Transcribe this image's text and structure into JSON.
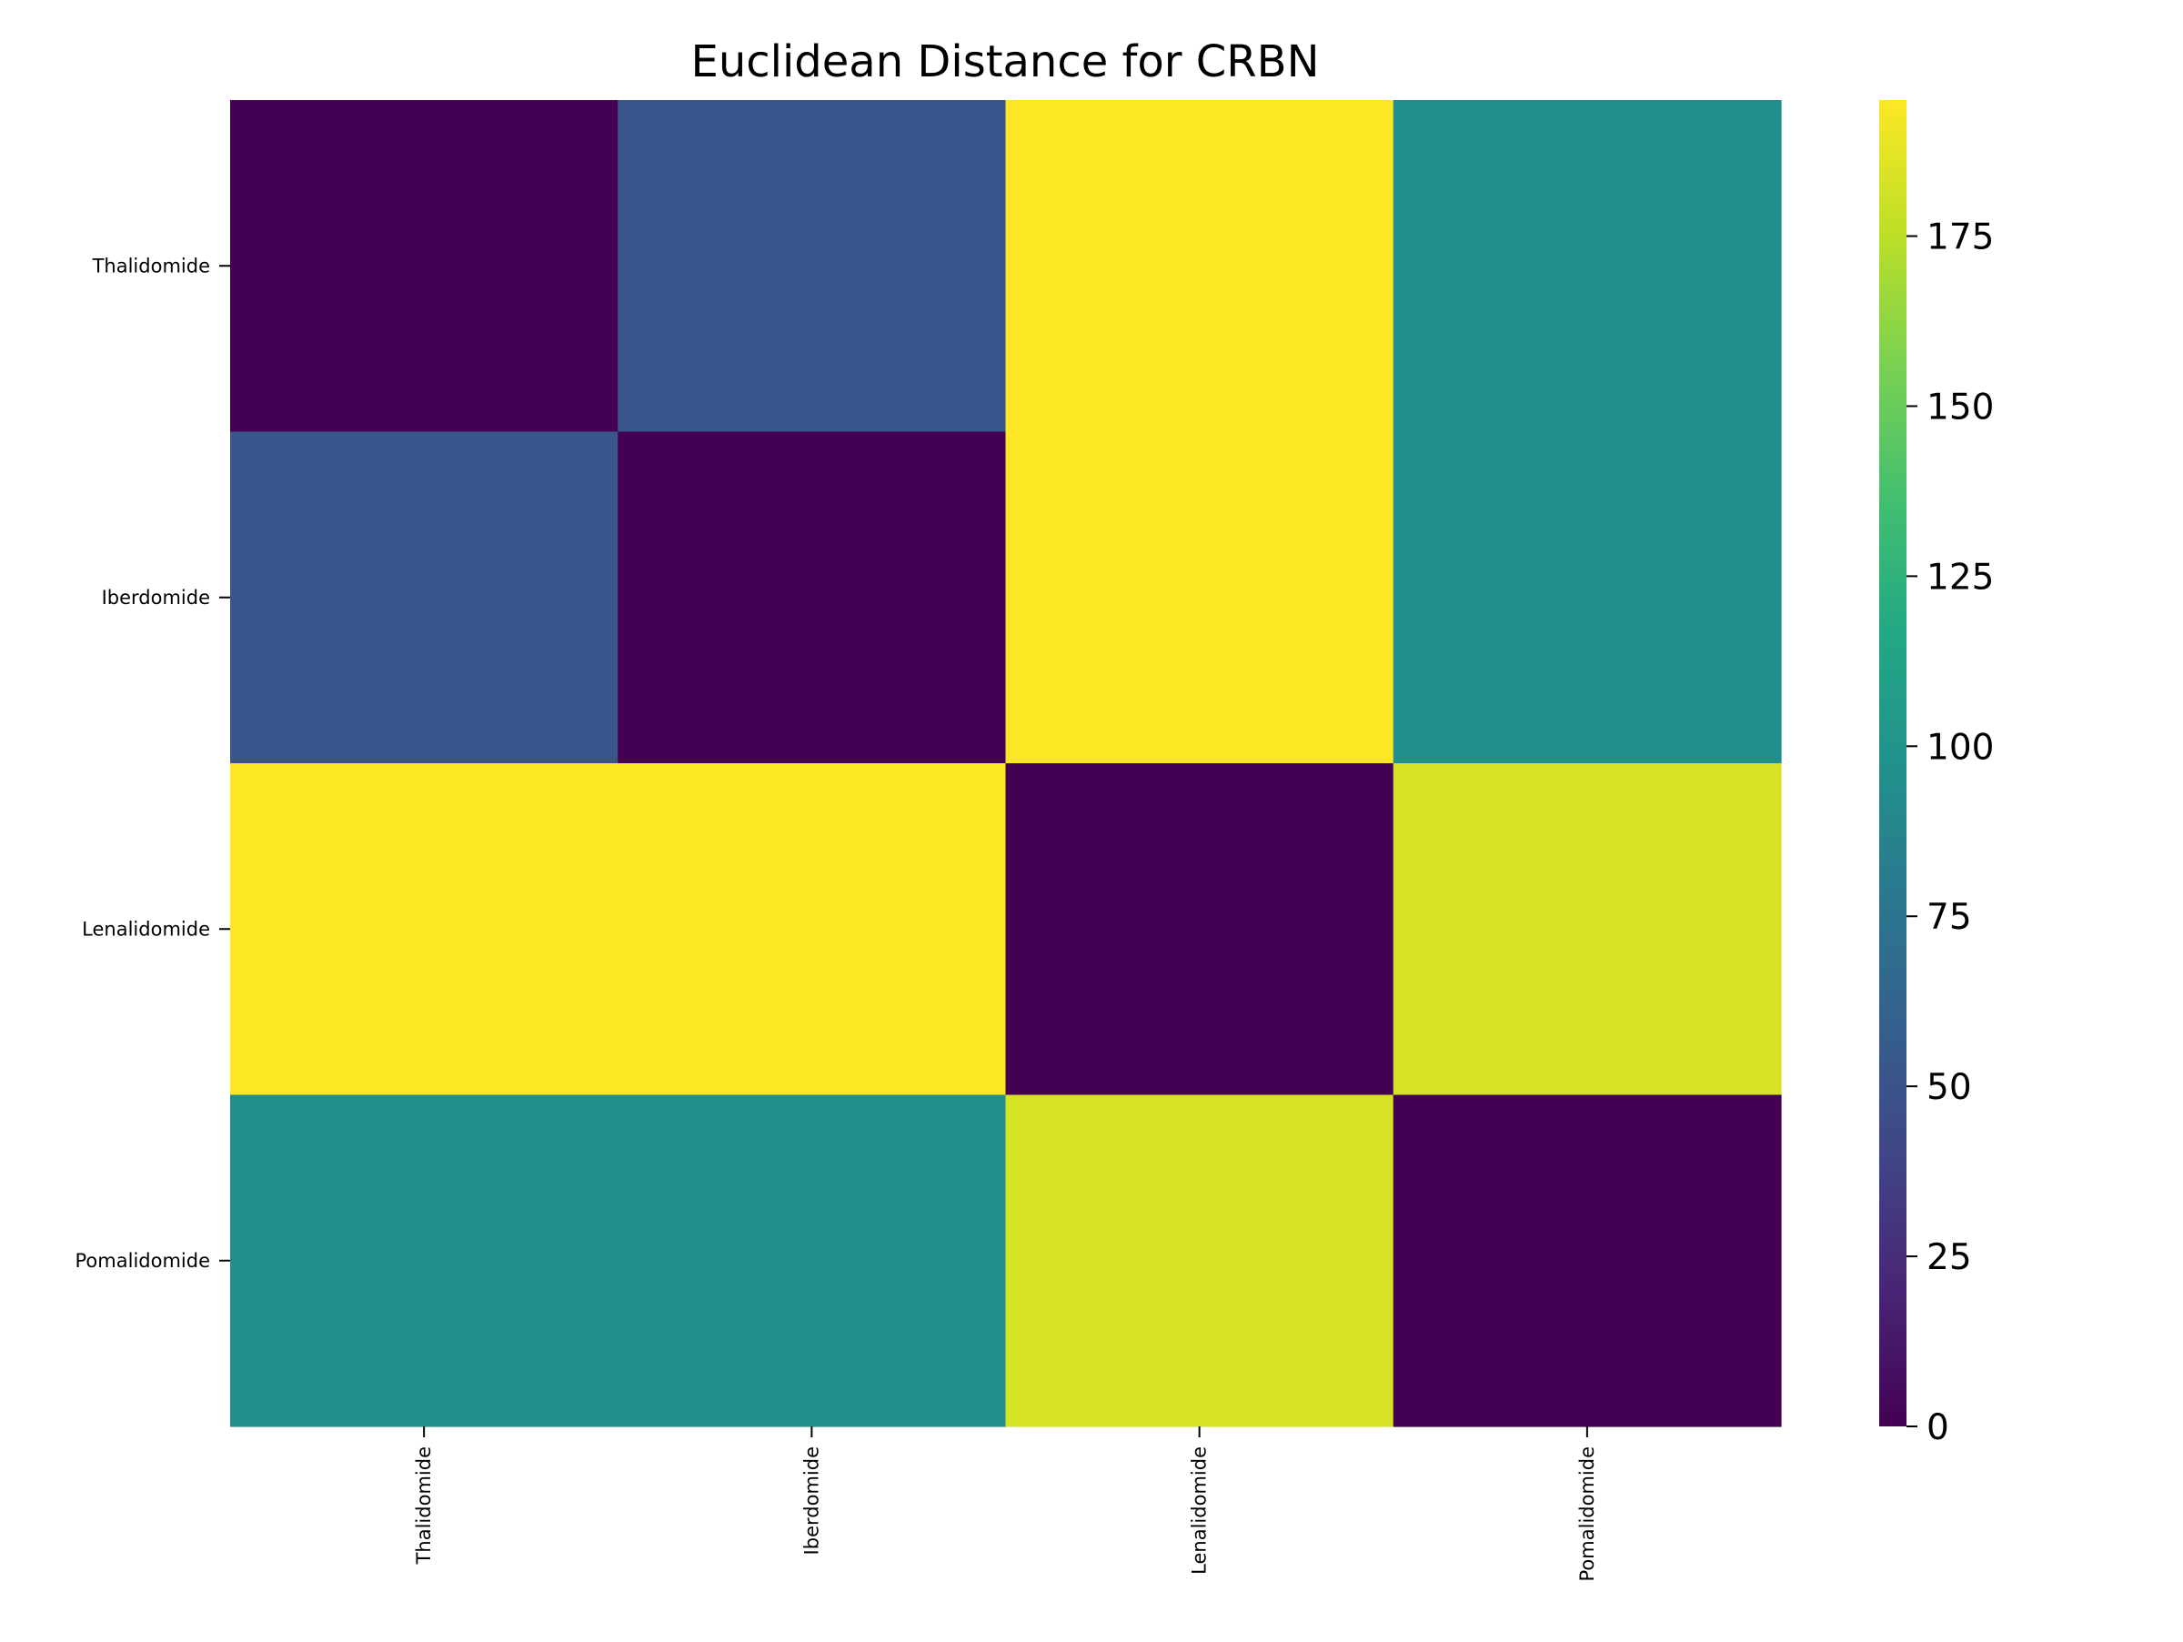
{
  "chart_data": {
    "type": "heatmap",
    "title": "Euclidean Distance for CRBN",
    "rows": [
      "Thalidomide",
      "Iberdomide",
      "Lenalidomide",
      "Pomalidomide"
    ],
    "columns": [
      "Thalidomide",
      "Iberdomide",
      "Lenalidomide",
      "Pomalidomide"
    ],
    "values": [
      [
        0,
        51,
        195,
        97
      ],
      [
        51,
        0,
        195,
        97
      ],
      [
        195,
        195,
        0,
        183
      ],
      [
        97,
        97,
        183,
        0
      ]
    ],
    "colormap": "viridis",
    "colorbar": {
      "range": [
        0,
        195
      ],
      "ticks": [
        0,
        25,
        50,
        75,
        100,
        125,
        150,
        175
      ]
    }
  }
}
